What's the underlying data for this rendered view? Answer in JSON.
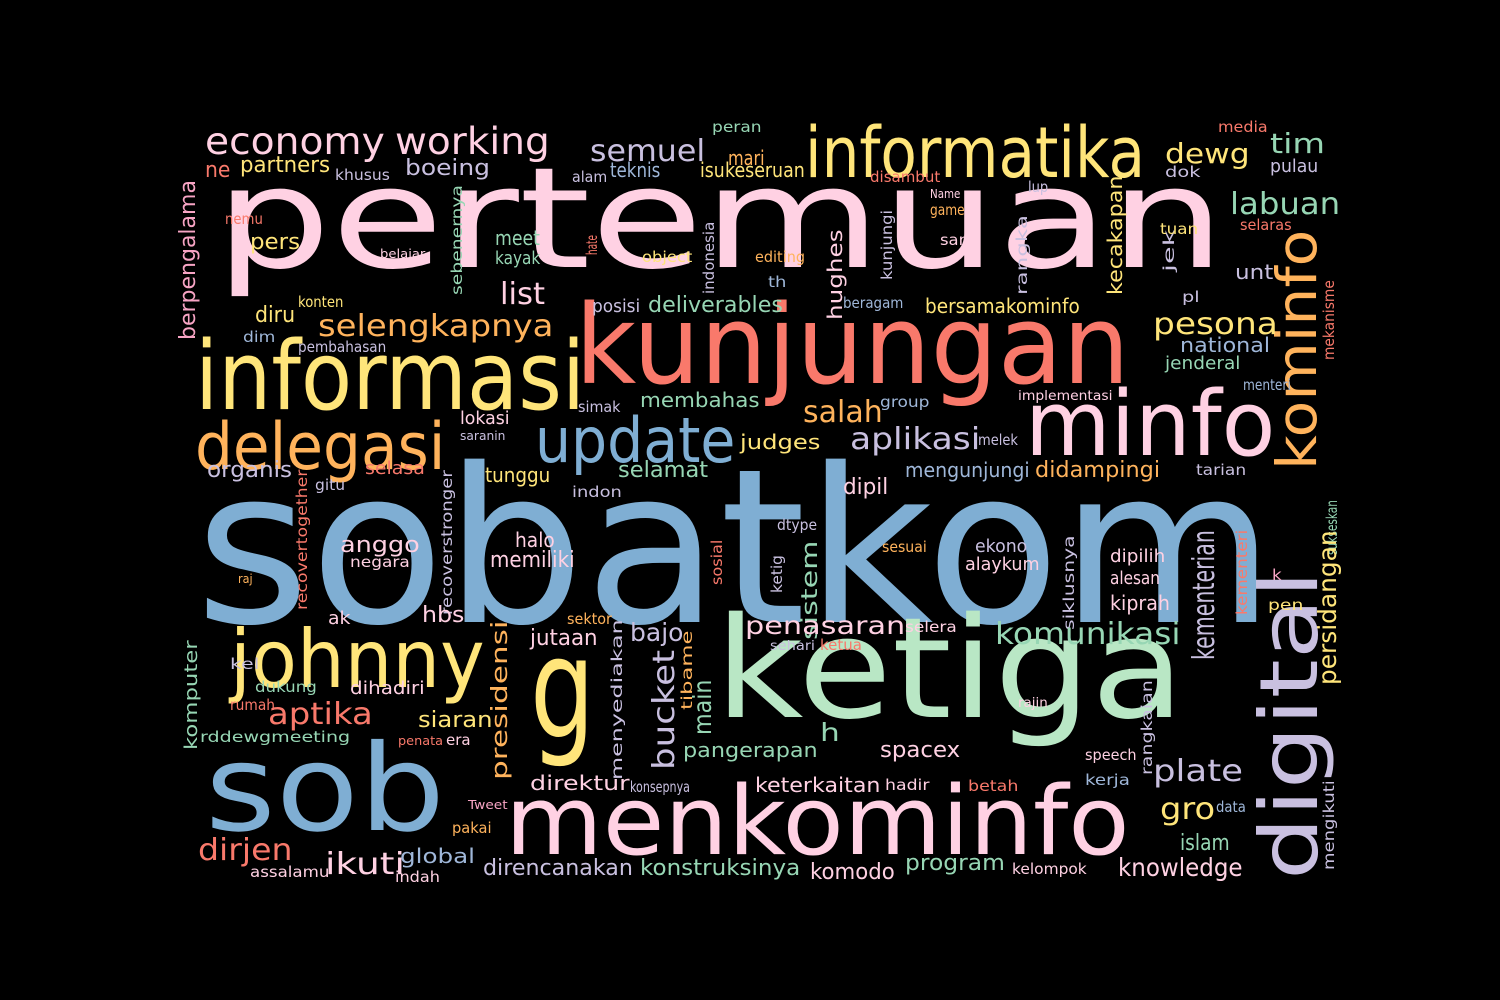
{
  "palette": [
    "#FFD1E3",
    "#F9796B",
    "#FFE57A",
    "#FFB35C",
    "#7FAED3",
    "#B9E7C5",
    "#C9C0E0",
    "#97D6B4",
    "#F7A4C4",
    "#9FB7D9",
    "#E3D3F5"
  ],
  "words": [
    {
      "text": "sobatkom",
      "color": "#7FAED3"
    },
    {
      "text": "pertemuan",
      "color": "#FFD1E3"
    },
    {
      "text": "ketiga",
      "color": "#B9E7C5"
    },
    {
      "text": "kunjungan",
      "color": "#F9796B"
    },
    {
      "text": "sob",
      "color": "#7FAED3"
    },
    {
      "text": "menkominfo",
      "color": "#FFD1E3"
    },
    {
      "text": "g",
      "color": "#FFE57A"
    },
    {
      "text": "informasi",
      "color": "#FFE57A"
    },
    {
      "text": "digital",
      "color": "#C9C0E0"
    },
    {
      "text": "informatika",
      "color": "#FFE57A"
    },
    {
      "text": "minfo",
      "color": "#FFD1E3"
    },
    {
      "text": "update",
      "color": "#7FAED3"
    },
    {
      "text": "johnny",
      "color": "#FFE57A"
    },
    {
      "text": "delegasi",
      "color": "#FFB35C"
    },
    {
      "text": "kominfo",
      "color": "#FFB35C"
    },
    {
      "text": "economy",
      "color": "#FFD1E3"
    },
    {
      "text": "working",
      "color": "#FFD1E3"
    },
    {
      "text": "semuel",
      "color": "#C9C0E0"
    },
    {
      "text": "dewg",
      "color": "#FFE57A"
    },
    {
      "text": "tim",
      "color": "#97D6B4"
    },
    {
      "text": "labuan",
      "color": "#97D6B4"
    },
    {
      "text": "ne",
      "color": "#F9796B"
    },
    {
      "text": "partners",
      "color": "#FFE57A"
    },
    {
      "text": "khusus",
      "color": "#C9C0E0"
    },
    {
      "text": "boeing",
      "color": "#C9C0E0"
    },
    {
      "text": "peran",
      "color": "#97D6B4"
    },
    {
      "text": "media",
      "color": "#F9796B"
    },
    {
      "text": "mari",
      "color": "#FFB35C"
    },
    {
      "text": "teknis",
      "color": "#9FB7D9"
    },
    {
      "text": "isu",
      "color": "#FFE57A"
    },
    {
      "text": "keseruan",
      "color": "#FFE57A"
    },
    {
      "text": "alam",
      "color": "#C9C0E0"
    },
    {
      "text": "disambut",
      "color": "#F9796B"
    },
    {
      "text": "dok",
      "color": "#C9C0E0"
    },
    {
      "text": "pulau",
      "color": "#C9C0E0"
    },
    {
      "text": "lup",
      "color": "#C9C0E0"
    },
    {
      "text": "Name",
      "color": "#FFD1E3"
    },
    {
      "text": "game",
      "color": "#FFB35C"
    },
    {
      "text": "berpengalama",
      "color": "#F7A4C4"
    },
    {
      "text": "nemu",
      "color": "#F9796B"
    },
    {
      "text": "pers",
      "color": "#FFE57A"
    },
    {
      "text": "belajar",
      "color": "#FFD1E3"
    },
    {
      "text": "hate",
      "color": "#F9796B"
    },
    {
      "text": "sebenernya",
      "color": "#97D6B4"
    },
    {
      "text": "meet",
      "color": "#97D6B4"
    },
    {
      "text": "kayak",
      "color": "#97D6B4"
    },
    {
      "text": "object",
      "color": "#FFE57A"
    },
    {
      "text": "indonesia",
      "color": "#C9C0E0"
    },
    {
      "text": "editing",
      "color": "#FFB35C"
    },
    {
      "text": "hughes",
      "color": "#FFD1E3"
    },
    {
      "text": "kunjungi",
      "color": "#C9C0E0"
    },
    {
      "text": "sam",
      "color": "#FFD1E3"
    },
    {
      "text": "rangka",
      "color": "#C9C0E0"
    },
    {
      "text": "kecakapan",
      "color": "#FFE57A"
    },
    {
      "text": "jek",
      "color": "#C9C0E0"
    },
    {
      "text": "tuan",
      "color": "#FFE57A"
    },
    {
      "text": "selaras",
      "color": "#F9796B"
    },
    {
      "text": "unt",
      "color": "#C9C0E0"
    },
    {
      "text": "list",
      "color": "#FFD1E3"
    },
    {
      "text": "th",
      "color": "#9FB7D9"
    },
    {
      "text": "pl",
      "color": "#C9C0E0"
    },
    {
      "text": "diru",
      "color": "#FFE57A"
    },
    {
      "text": "konten",
      "color": "#FFE57A"
    },
    {
      "text": "posisi",
      "color": "#C9C0E0"
    },
    {
      "text": "deliverables",
      "color": "#97D6B4"
    },
    {
      "text": "beragam",
      "color": "#9FB7D9"
    },
    {
      "text": "bersamakominfo",
      "color": "#FFE57A"
    },
    {
      "text": "mekanisme",
      "color": "#F9796B"
    },
    {
      "text": "dim",
      "color": "#9FB7D9"
    },
    {
      "text": "selengkapnya",
      "color": "#FFB35C"
    },
    {
      "text": "pesona",
      "color": "#FFE57A"
    },
    {
      "text": "pembahasan",
      "color": "#C9C0E0"
    },
    {
      "text": "national",
      "color": "#9FB7D9"
    },
    {
      "text": "jenderal",
      "color": "#97D6B4"
    },
    {
      "text": "menteri",
      "color": "#9FB7D9"
    },
    {
      "text": "implementasi",
      "color": "#FFD1E3"
    },
    {
      "text": "membahas",
      "color": "#97D6B4"
    },
    {
      "text": "group",
      "color": "#9FB7D9"
    },
    {
      "text": "simak",
      "color": "#C9C0E0"
    },
    {
      "text": "lokasi",
      "color": "#FFD1E3"
    },
    {
      "text": "saranin",
      "color": "#C9C0E0"
    },
    {
      "text": "salah",
      "color": "#FFB35C"
    },
    {
      "text": "judges",
      "color": "#FFE57A"
    },
    {
      "text": "aplikasi",
      "color": "#C9C0E0"
    },
    {
      "text": "melek",
      "color": "#C9C0E0"
    },
    {
      "text": "organis",
      "color": "#C9C0E0"
    },
    {
      "text": "selasa",
      "color": "#F9796B"
    },
    {
      "text": "gitu",
      "color": "#C9C0E0"
    },
    {
      "text": "tunggu",
      "color": "#FFE57A"
    },
    {
      "text": "selamat",
      "color": "#97D6B4"
    },
    {
      "text": "mengunjungi",
      "color": "#9FB7D9"
    },
    {
      "text": "didampingi",
      "color": "#FFB35C"
    },
    {
      "text": "tarian",
      "color": "#C9C0E0"
    },
    {
      "text": "indon",
      "color": "#C9C0E0"
    },
    {
      "text": "dipil",
      "color": "#FFD1E3"
    },
    {
      "text": "recovertogether",
      "color": "#F9796B"
    },
    {
      "text": "recoverstronger",
      "color": "#C9C0E0"
    },
    {
      "text": "halo",
      "color": "#FFD1E3"
    },
    {
      "text": "dtype",
      "color": "#C9C0E0"
    },
    {
      "text": "sukseskan",
      "color": "#97D6B4"
    },
    {
      "text": "anggo",
      "color": "#FFD1E3"
    },
    {
      "text": "negara",
      "color": "#FFD1E3"
    },
    {
      "text": "memiliki",
      "color": "#FFD1E3"
    },
    {
      "text": "sosial",
      "color": "#F9796B"
    },
    {
      "text": "ketig",
      "color": "#C9C0E0"
    },
    {
      "text": "sistem",
      "color": "#97D6B4"
    },
    {
      "text": "sesuai",
      "color": "#FFB35C"
    },
    {
      "text": "ekono",
      "color": "#C9C0E0"
    },
    {
      "text": "alaykum",
      "color": "#FFD1E3"
    },
    {
      "text": "siklusnya",
      "color": "#C9C0E0"
    },
    {
      "text": "dipilih",
      "color": "#FFD1E3"
    },
    {
      "text": "kementerian",
      "color": "#C9C0E0"
    },
    {
      "text": "kementeri",
      "color": "#F9796B"
    },
    {
      "text": "persidangan",
      "color": "#FFE57A"
    },
    {
      "text": "raj",
      "color": "#FFB35C"
    },
    {
      "text": "alesan",
      "color": "#FFD1E3"
    },
    {
      "text": "k",
      "color": "#F7A4C4"
    },
    {
      "text": "kiprah",
      "color": "#FFD1E3"
    },
    {
      "text": "ak",
      "color": "#FFD1E3"
    },
    {
      "text": "hbs",
      "color": "#FFD1E3"
    },
    {
      "text": "sektor",
      "color": "#FFB35C"
    },
    {
      "text": "pen",
      "color": "#FFE57A"
    },
    {
      "text": "presidensi",
      "color": "#FFB35C"
    },
    {
      "text": "jutaan",
      "color": "#FFD1E3"
    },
    {
      "text": "bajo",
      "color": "#C9C0E0"
    },
    {
      "text": "penasaran",
      "color": "#FFD1E3"
    },
    {
      "text": "selera",
      "color": "#FFD1E3"
    },
    {
      "text": "komunikasi",
      "color": "#97D6B4"
    },
    {
      "text": "sehari",
      "color": "#C9C0E0"
    },
    {
      "text": "ketua",
      "color": "#F9796B"
    },
    {
      "text": "komputer",
      "color": "#97D6B4"
    },
    {
      "text": "kel",
      "color": "#C9C0E0"
    },
    {
      "text": "dukung",
      "color": "#97D6B4"
    },
    {
      "text": "dihadiri",
      "color": "#FFD1E3"
    },
    {
      "text": "rumah",
      "color": "#F9796B"
    },
    {
      "text": "aptika",
      "color": "#F9796B"
    },
    {
      "text": "menyediakan",
      "color": "#C9C0E0"
    },
    {
      "text": "tibame",
      "color": "#FFB35C"
    },
    {
      "text": "bucket",
      "color": "#C9C0E0"
    },
    {
      "text": "main",
      "color": "#97D6B4"
    },
    {
      "text": "siaran",
      "color": "#FFE57A"
    },
    {
      "text": "rajin",
      "color": "#FFD1E3"
    },
    {
      "text": "rangkaian",
      "color": "#C9C0E0"
    },
    {
      "text": "rddewgmeeting",
      "color": "#97D6B4"
    },
    {
      "text": "penata",
      "color": "#F9796B"
    },
    {
      "text": "era",
      "color": "#FFD1E3"
    },
    {
      "text": "pangerapan",
      "color": "#97D6B4"
    },
    {
      "text": "h",
      "color": "#97D6B4"
    },
    {
      "text": "spacex",
      "color": "#FFD1E3"
    },
    {
      "text": "speech",
      "color": "#FFD1E3"
    },
    {
      "text": "plate",
      "color": "#C9C0E0"
    },
    {
      "text": "direktur",
      "color": "#FFD1E3"
    },
    {
      "text": "konsepnya",
      "color": "#C9C0E0"
    },
    {
      "text": "keterkaitan",
      "color": "#FFD1E3"
    },
    {
      "text": "hadir",
      "color": "#FFD1E3"
    },
    {
      "text": "kerja",
      "color": "#9FB7D9"
    },
    {
      "text": "betah",
      "color": "#F9796B"
    },
    {
      "text": "mengikuti",
      "color": "#C9C0E0"
    },
    {
      "text": "Tweet",
      "color": "#F7A4C4"
    },
    {
      "text": "data",
      "color": "#9FB7D9"
    },
    {
      "text": "gro",
      "color": "#FFE57A"
    },
    {
      "text": "pakai",
      "color": "#FFB35C"
    },
    {
      "text": "islam",
      "color": "#97D6B4"
    },
    {
      "text": "dirjen",
      "color": "#F9796B"
    },
    {
      "text": "ikuti",
      "color": "#FFD1E3"
    },
    {
      "text": "global",
      "color": "#9FB7D9"
    },
    {
      "text": "assalamu",
      "color": "#FFD1E3"
    },
    {
      "text": "indah",
      "color": "#FFD1E3"
    },
    {
      "text": "direncanakan",
      "color": "#C9C0E0"
    },
    {
      "text": "konstruksinya",
      "color": "#97D6B4"
    },
    {
      "text": "komodo",
      "color": "#FFD1E3"
    },
    {
      "text": "program",
      "color": "#97D6B4"
    },
    {
      "text": "kelompok",
      "color": "#FFD1E3"
    },
    {
      "text": "knowledge",
      "color": "#FFD1E3"
    }
  ]
}
